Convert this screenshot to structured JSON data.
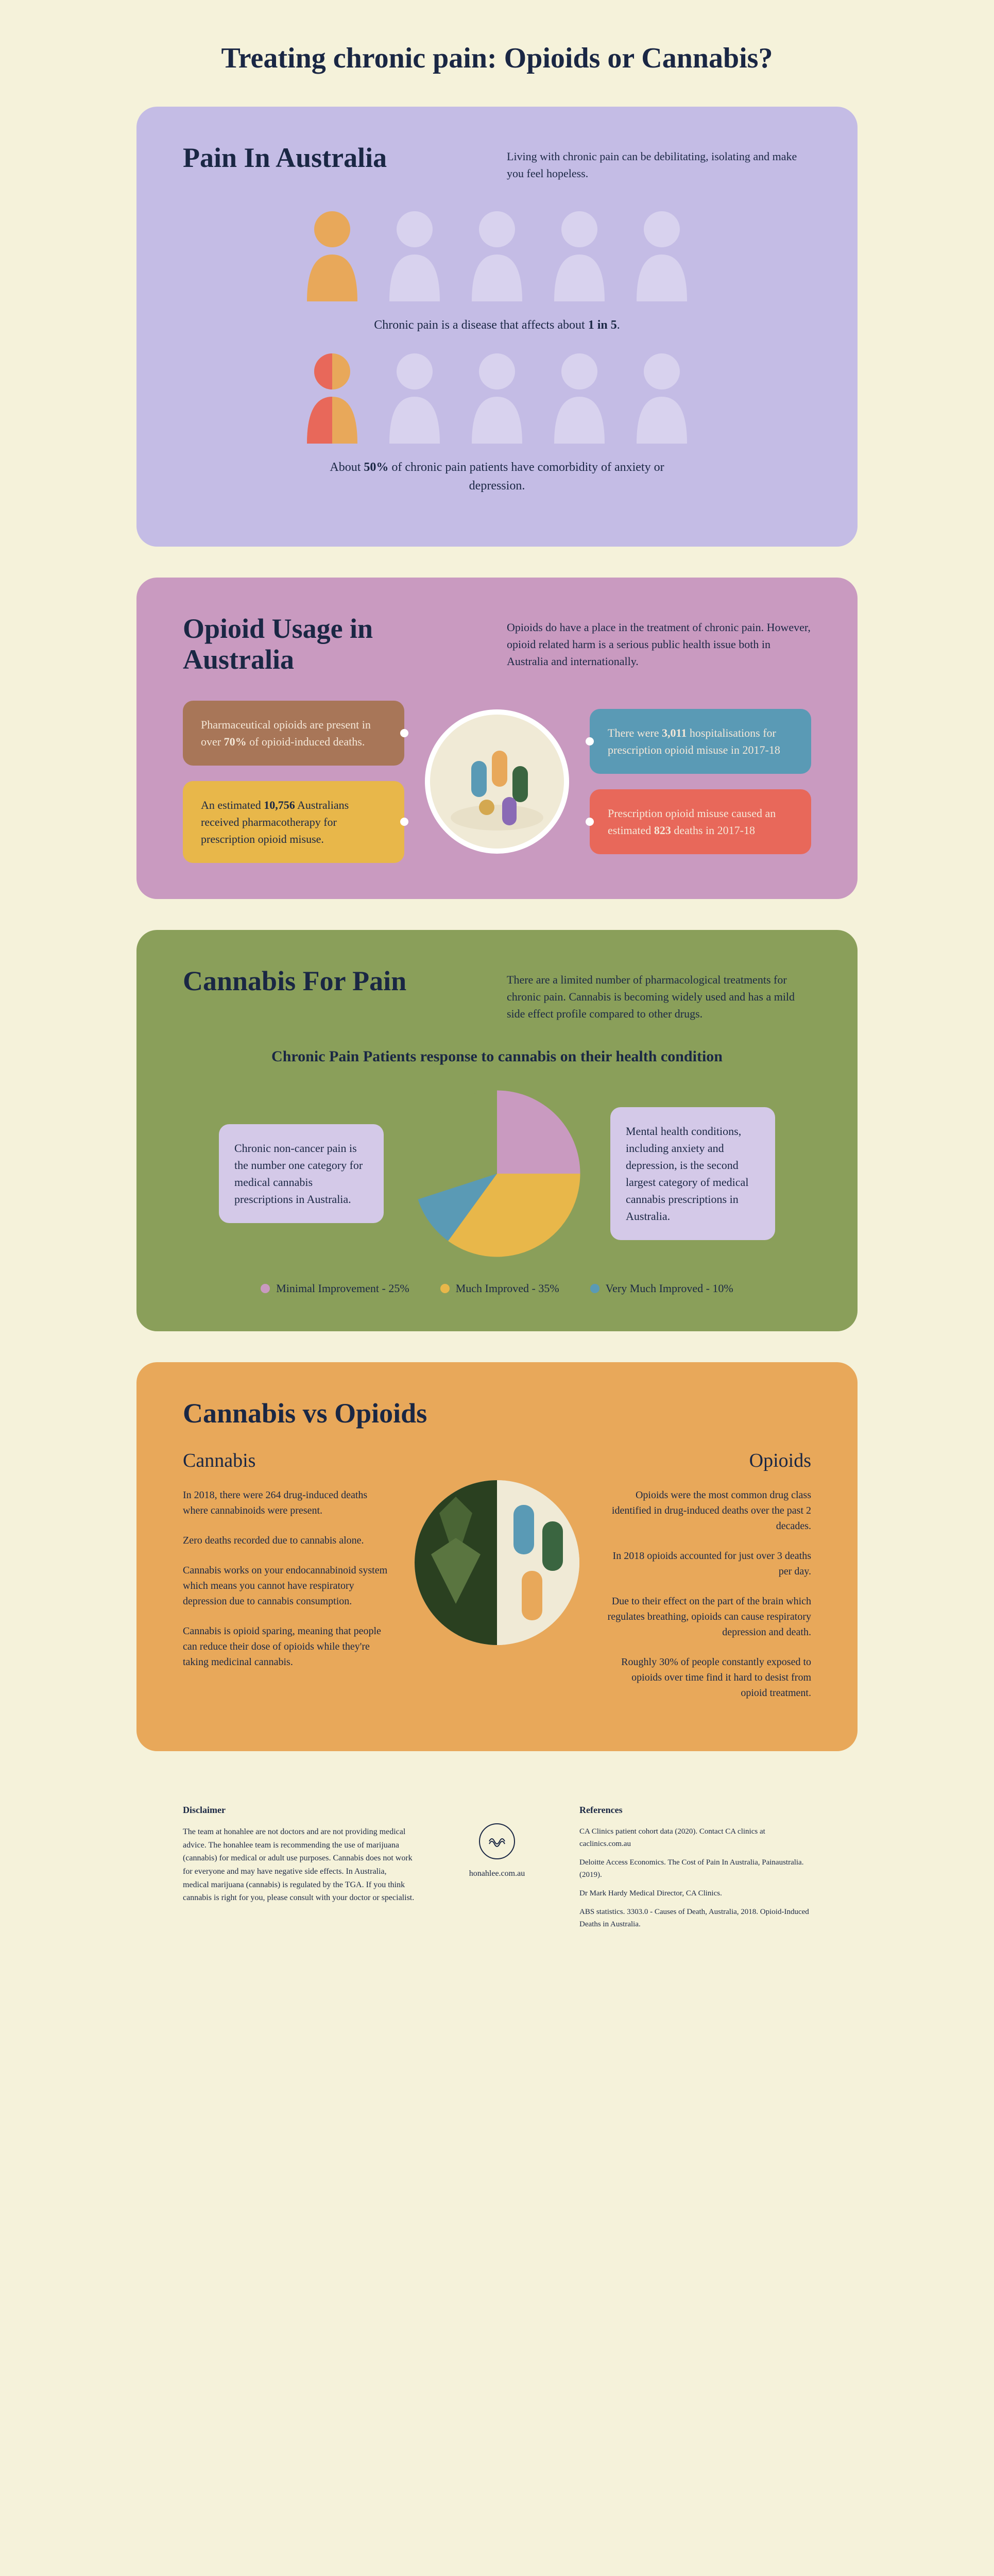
{
  "title": "Treating chronic pain:\nOpioids or Cannabis?",
  "colors": {
    "background": "#f5f2da",
    "text_dark": "#1a2744",
    "lavender": "#c4bce5",
    "purple": "#c99ac0",
    "green": "#8a9f5a",
    "orange": "#e8a85a",
    "person_highlight": "#e8a85a",
    "person_split1": "#e8685a",
    "person_split2": "#e8a85a",
    "person_faded": "#d8d2ee"
  },
  "section1": {
    "title": "Pain In Australia",
    "intro": "Living with chronic pain can be debilitating, isolating and make you feel hopeless.",
    "caption1_pre": "Chronic pain is a disease that affects about ",
    "caption1_bold": "1 in 5",
    "caption1_post": ".",
    "caption2_pre": "About ",
    "caption2_bold": "50%",
    "caption2_post": " of chronic pain patients have comorbidity of anxiety or depression.",
    "row1_highlight_index": 0,
    "row2_split_index": 0,
    "people_per_row": 5
  },
  "section2": {
    "title": "Opioid Usage in Australia",
    "intro": "Opioids do have a place in the treatment of chronic pain. However, opioid related harm is a serious public health issue both in Australia and internationally.",
    "stats": {
      "brown": {
        "pre": "Pharmaceutical opioids are present in over ",
        "bold": "70%",
        "post": " of opioid-induced deaths.",
        "bg": "#a87658"
      },
      "yellow": {
        "pre": "An estimated ",
        "bold": "10,756",
        "post": " Australians received pharmacotherapy for prescription opioid misuse.",
        "bg": "#e8b74a"
      },
      "blue": {
        "pre": "There were ",
        "bold": "3,011",
        "post": " hospitalisations for prescription opioid misuse in 2017-18",
        "bg": "#5a9ab5"
      },
      "red": {
        "pre": "Prescription opioid misuse caused an estimated ",
        "bold": "823",
        "post": " deaths in 2017-18",
        "bg": "#e8685a"
      }
    }
  },
  "section3": {
    "title": "Cannabis For Pain",
    "intro": "There are a limited number of pharmacological treatments for chronic pain. Cannabis is becoming widely used and has a mild side effect profile compared to other drugs.",
    "pie_title": "Chronic Pain Patients response to cannabis on their health condition",
    "left_box": "Chronic non-cancer pain is the number one category for medical cannabis prescriptions in Australia.",
    "right_box": "Mental health conditions, including anxiety and depression, is the second largest category of medical cannabis prescriptions in Australia.",
    "pie": {
      "slices": [
        {
          "label": "Minimal Improvement",
          "value": 25,
          "color": "#c99ac0"
        },
        {
          "label": "Much Improved",
          "value": 35,
          "color": "#e8b74a"
        },
        {
          "label": "Very Much Improved",
          "value": 10,
          "color": "#5a9ab5"
        }
      ],
      "remainder_color": "#8a9f5a"
    }
  },
  "section4": {
    "title": "Cannabis vs Opioids",
    "cannabis_title": "Cannabis",
    "opioids_title": "Opioids",
    "cannabis_points": [
      "In 2018, there were 264 drug-induced deaths where cannabinoids were present.",
      "Zero deaths recorded due to cannabis alone.",
      "Cannabis works on your endocannabinoid system which means you cannot have respiratory depression due to cannabis consumption.",
      "Cannabis is opioid sparing, meaning that people can reduce their dose of opioids while they're taking medicinal cannabis."
    ],
    "opioids_points": [
      "Opioids were the most common drug class identified in drug-induced deaths over the past 2 decades.",
      "In 2018 opioids accounted for just over 3 deaths per day.",
      "Due to their effect on the part of the brain which regulates breathing, opioids can cause respiratory depression and death.",
      "Roughly 30% of people constantly exposed to opioids over time find it hard to desist from opioid treatment."
    ]
  },
  "footer": {
    "disclaimer_title": "Disclaimer",
    "disclaimer_text": "The team at honahlee are not doctors and are not providing medical advice. The honahlee team is recommending the use of marijuana (cannabis) for medical or adult use purposes. Cannabis does not work for everyone and may have negative side effects. In Australia, medical marijuana (cannabis) is regulated by the TGA. If you think cannabis is right for you, please consult with your doctor or specialist.",
    "site": "honahlee.com.au",
    "references_title": "References",
    "references": [
      "CA Clinics patient cohort data (2020). Contact CA clinics at caclinics.com.au",
      "Deloitte Access Economics.\nThe Cost of Pain In Australia, Painaustralia. (2019).",
      "Dr Mark Hardy\nMedical Director, CA Clinics.",
      "ABS statistics. 3303.0 - Causes of Death, Australia, 2018. Opioid-Induced Deaths in Australia."
    ]
  }
}
